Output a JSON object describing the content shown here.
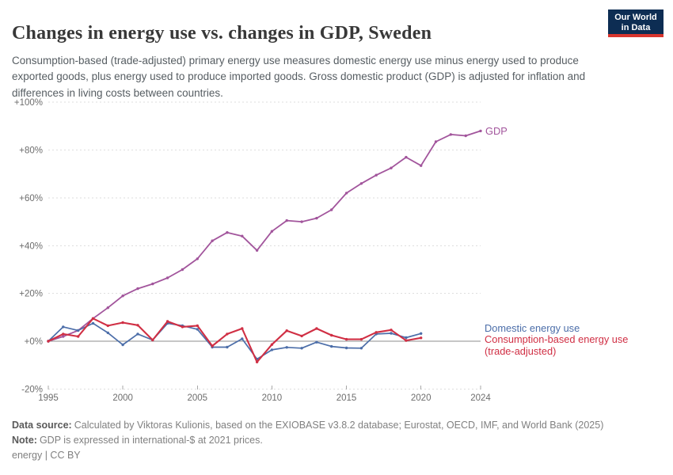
{
  "header": {
    "title": "Changes in energy use vs. changes in GDP, Sweden",
    "subtitle": "Consumption-based (trade-adjusted) primary energy use measures domestic energy use minus energy used to produce exported goods, plus energy used to produce imported goods. Gross domestic product (GDP) is adjusted for inflation and differences in living costs between countries.",
    "logo": {
      "line1": "Our World",
      "line2": "in Data",
      "bg_color": "#0d2d53",
      "bar_color": "#d8352e"
    }
  },
  "chart_data": {
    "type": "line",
    "title": "Changes in energy use vs. changes in GDP, Sweden",
    "xlabel": "",
    "ylabel": "",
    "ylim": [
      -20,
      100
    ],
    "xlim": [
      1995,
      2024
    ],
    "grid": "dashed horizontal",
    "legend_position": "right of line ends",
    "yticks": [
      {
        "value": 100,
        "label": "+100%"
      },
      {
        "value": 80,
        "label": "+80%"
      },
      {
        "value": 60,
        "label": "+60%"
      },
      {
        "value": 40,
        "label": "+40%"
      },
      {
        "value": 20,
        "label": "+20%"
      },
      {
        "value": 0,
        "label": "+0%"
      },
      {
        "value": -20,
        "label": "-20%"
      }
    ],
    "xticks": [
      {
        "value": 1995,
        "label": "1995"
      },
      {
        "value": 2000,
        "label": "2000"
      },
      {
        "value": 2005,
        "label": "2005"
      },
      {
        "value": 2010,
        "label": "2010"
      },
      {
        "value": 2015,
        "label": "2015"
      },
      {
        "value": 2020,
        "label": "2020"
      },
      {
        "value": 2024,
        "label": "2024"
      }
    ],
    "series": [
      {
        "name": "GDP",
        "label": "GDP",
        "color": "#a2559c",
        "years": [
          1995,
          1996,
          1997,
          1998,
          1999,
          2000,
          2001,
          2002,
          2003,
          2004,
          2005,
          2006,
          2007,
          2008,
          2009,
          2010,
          2011,
          2012,
          2013,
          2014,
          2015,
          2016,
          2017,
          2018,
          2019,
          2020,
          2021,
          2022,
          2023,
          2024
        ],
        "values": [
          0,
          2,
          4.5,
          9.5,
          14,
          19,
          22,
          24,
          26.5,
          30,
          34.5,
          42,
          45.5,
          44,
          38,
          46,
          50.5,
          50,
          51.5,
          55,
          62,
          66,
          69.5,
          72.5,
          77,
          73.5,
          83.5,
          86.5,
          86,
          88
        ]
      },
      {
        "name": "Domestic energy use",
        "label": "Domestic energy use",
        "color": "#4c6ea9",
        "years": [
          1995,
          1996,
          1997,
          1998,
          1999,
          2000,
          2001,
          2002,
          2003,
          2004,
          2005,
          2006,
          2007,
          2008,
          2009,
          2010,
          2011,
          2012,
          2013,
          2014,
          2015,
          2016,
          2017,
          2018,
          2019,
          2020
        ],
        "values": [
          0,
          6,
          4.5,
          7.5,
          3.5,
          -1.5,
          3,
          0.5,
          7.5,
          6.5,
          5,
          -2.5,
          -2.5,
          1,
          -7.5,
          -3.6,
          -2.6,
          -2.9,
          -0.4,
          -2.2,
          -2.8,
          -2.9,
          3,
          3.3,
          1.5,
          3.2
        ]
      },
      {
        "name": "Consumption-based energy use (trade-adjusted)",
        "label_line1": "Consumption-based energy use",
        "label_line2": "(trade-adjusted)",
        "color": "#d02f44",
        "years": [
          1995,
          1996,
          1997,
          1998,
          1999,
          2000,
          2001,
          2002,
          2003,
          2004,
          2005,
          2006,
          2007,
          2008,
          2009,
          2010,
          2011,
          2012,
          2013,
          2014,
          2015,
          2016,
          2017,
          2018,
          2019,
          2020
        ],
        "values": [
          0,
          3,
          2,
          9.5,
          6.5,
          7.8,
          6.7,
          0.5,
          8.3,
          6,
          6.5,
          -2,
          3,
          5.3,
          -8.7,
          -1.4,
          4.4,
          2.2,
          5.3,
          2.5,
          0.8,
          0.8,
          3.7,
          4.7,
          0.3,
          1.4
        ]
      }
    ]
  },
  "footer": {
    "source_label": "Data source:",
    "source_text": "Calculated by Viktoras Kulionis, based on the EXIOBASE v3.8.2 database; Eurostat, OECD, IMF, and World Bank (2025)",
    "note_label": "Note:",
    "note_text": "GDP is expressed in international-$ at 2021 prices.",
    "credit": "energy | CC BY"
  }
}
